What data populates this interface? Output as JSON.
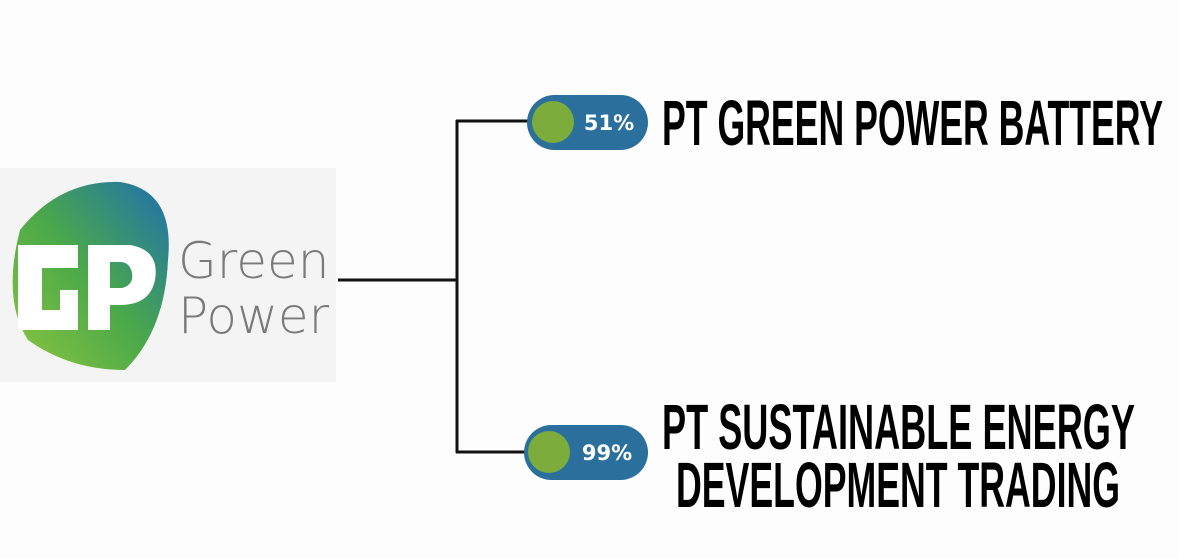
{
  "logo": {
    "line1": "Green",
    "line2": "Power"
  },
  "nodes": [
    {
      "percent": "51%",
      "label": [
        "PT GREEN POWER BATTERY"
      ]
    },
    {
      "percent": "99%",
      "label": [
        "PT SUSTAINABLE ENERGY",
        "DEVELOPMENT TRADING"
      ]
    }
  ]
}
